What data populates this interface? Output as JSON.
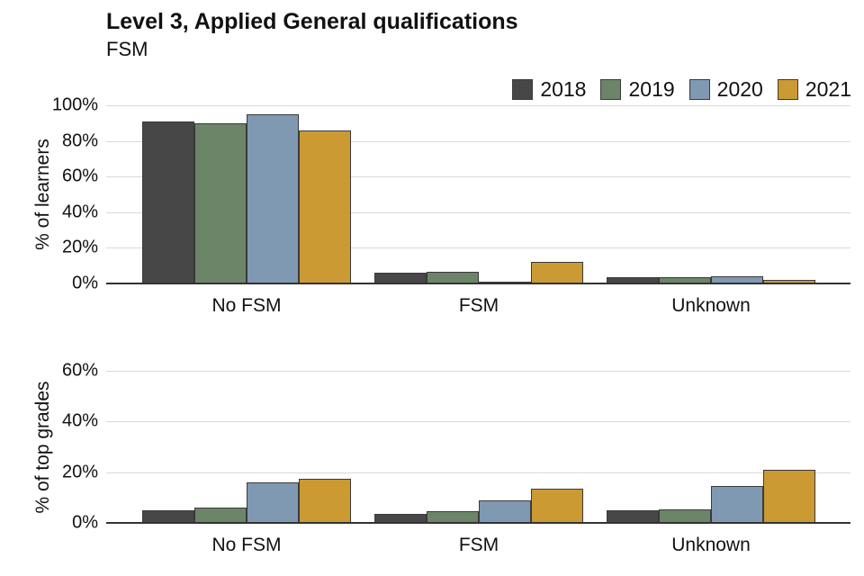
{
  "title": "Level 3, Applied General qualifications",
  "subtitle": "FSM",
  "legend": {
    "items": [
      {
        "label": "2018",
        "color": "#474747"
      },
      {
        "label": "2019",
        "color": "#6c8468"
      },
      {
        "label": "2020",
        "color": "#8099b2"
      },
      {
        "label": "2021",
        "color": "#cc9a33"
      }
    ]
  },
  "chart_data": [
    {
      "type": "bar",
      "panel": "top",
      "ylabel": "% of learners",
      "categories": [
        "No FSM",
        "FSM",
        "Unknown"
      ],
      "series": [
        {
          "name": "2018",
          "color": "#474747",
          "values": [
            91,
            6,
            3.5
          ]
        },
        {
          "name": "2019",
          "color": "#6c8468",
          "values": [
            90,
            6.5,
            3.5
          ]
        },
        {
          "name": "2020",
          "color": "#8099b2",
          "values": [
            95,
            1,
            4
          ]
        },
        {
          "name": "2021",
          "color": "#cc9a33",
          "values": [
            86,
            12,
            2
          ]
        }
      ],
      "ylim": [
        0,
        100
      ],
      "yticks": [
        {
          "v": 0,
          "label": "0%"
        },
        {
          "v": 20,
          "label": "20%"
        },
        {
          "v": 40,
          "label": "40%"
        },
        {
          "v": 60,
          "label": "60%"
        },
        {
          "v": 80,
          "label": "80%"
        },
        {
          "v": 100,
          "label": "100%"
        }
      ],
      "grid": true,
      "legend_position": "top-right"
    },
    {
      "type": "bar",
      "panel": "bottom",
      "ylabel": "% of top grades",
      "categories": [
        "No FSM",
        "FSM",
        "Unknown"
      ],
      "series": [
        {
          "name": "2018",
          "color": "#474747",
          "values": [
            5,
            3.5,
            5
          ]
        },
        {
          "name": "2019",
          "color": "#6c8468",
          "values": [
            6,
            4.5,
            5.5
          ]
        },
        {
          "name": "2020",
          "color": "#8099b2",
          "values": [
            16,
            9,
            14.5
          ]
        },
        {
          "name": "2021",
          "color": "#cc9a33",
          "values": [
            17.5,
            13.5,
            21
          ]
        }
      ],
      "ylim": [
        0,
        60
      ],
      "yticks": [
        {
          "v": 0,
          "label": "0%"
        },
        {
          "v": 20,
          "label": "20%"
        },
        {
          "v": 40,
          "label": "40%"
        },
        {
          "v": 60,
          "label": "60%"
        }
      ],
      "grid": true,
      "legend_position": "none"
    }
  ]
}
